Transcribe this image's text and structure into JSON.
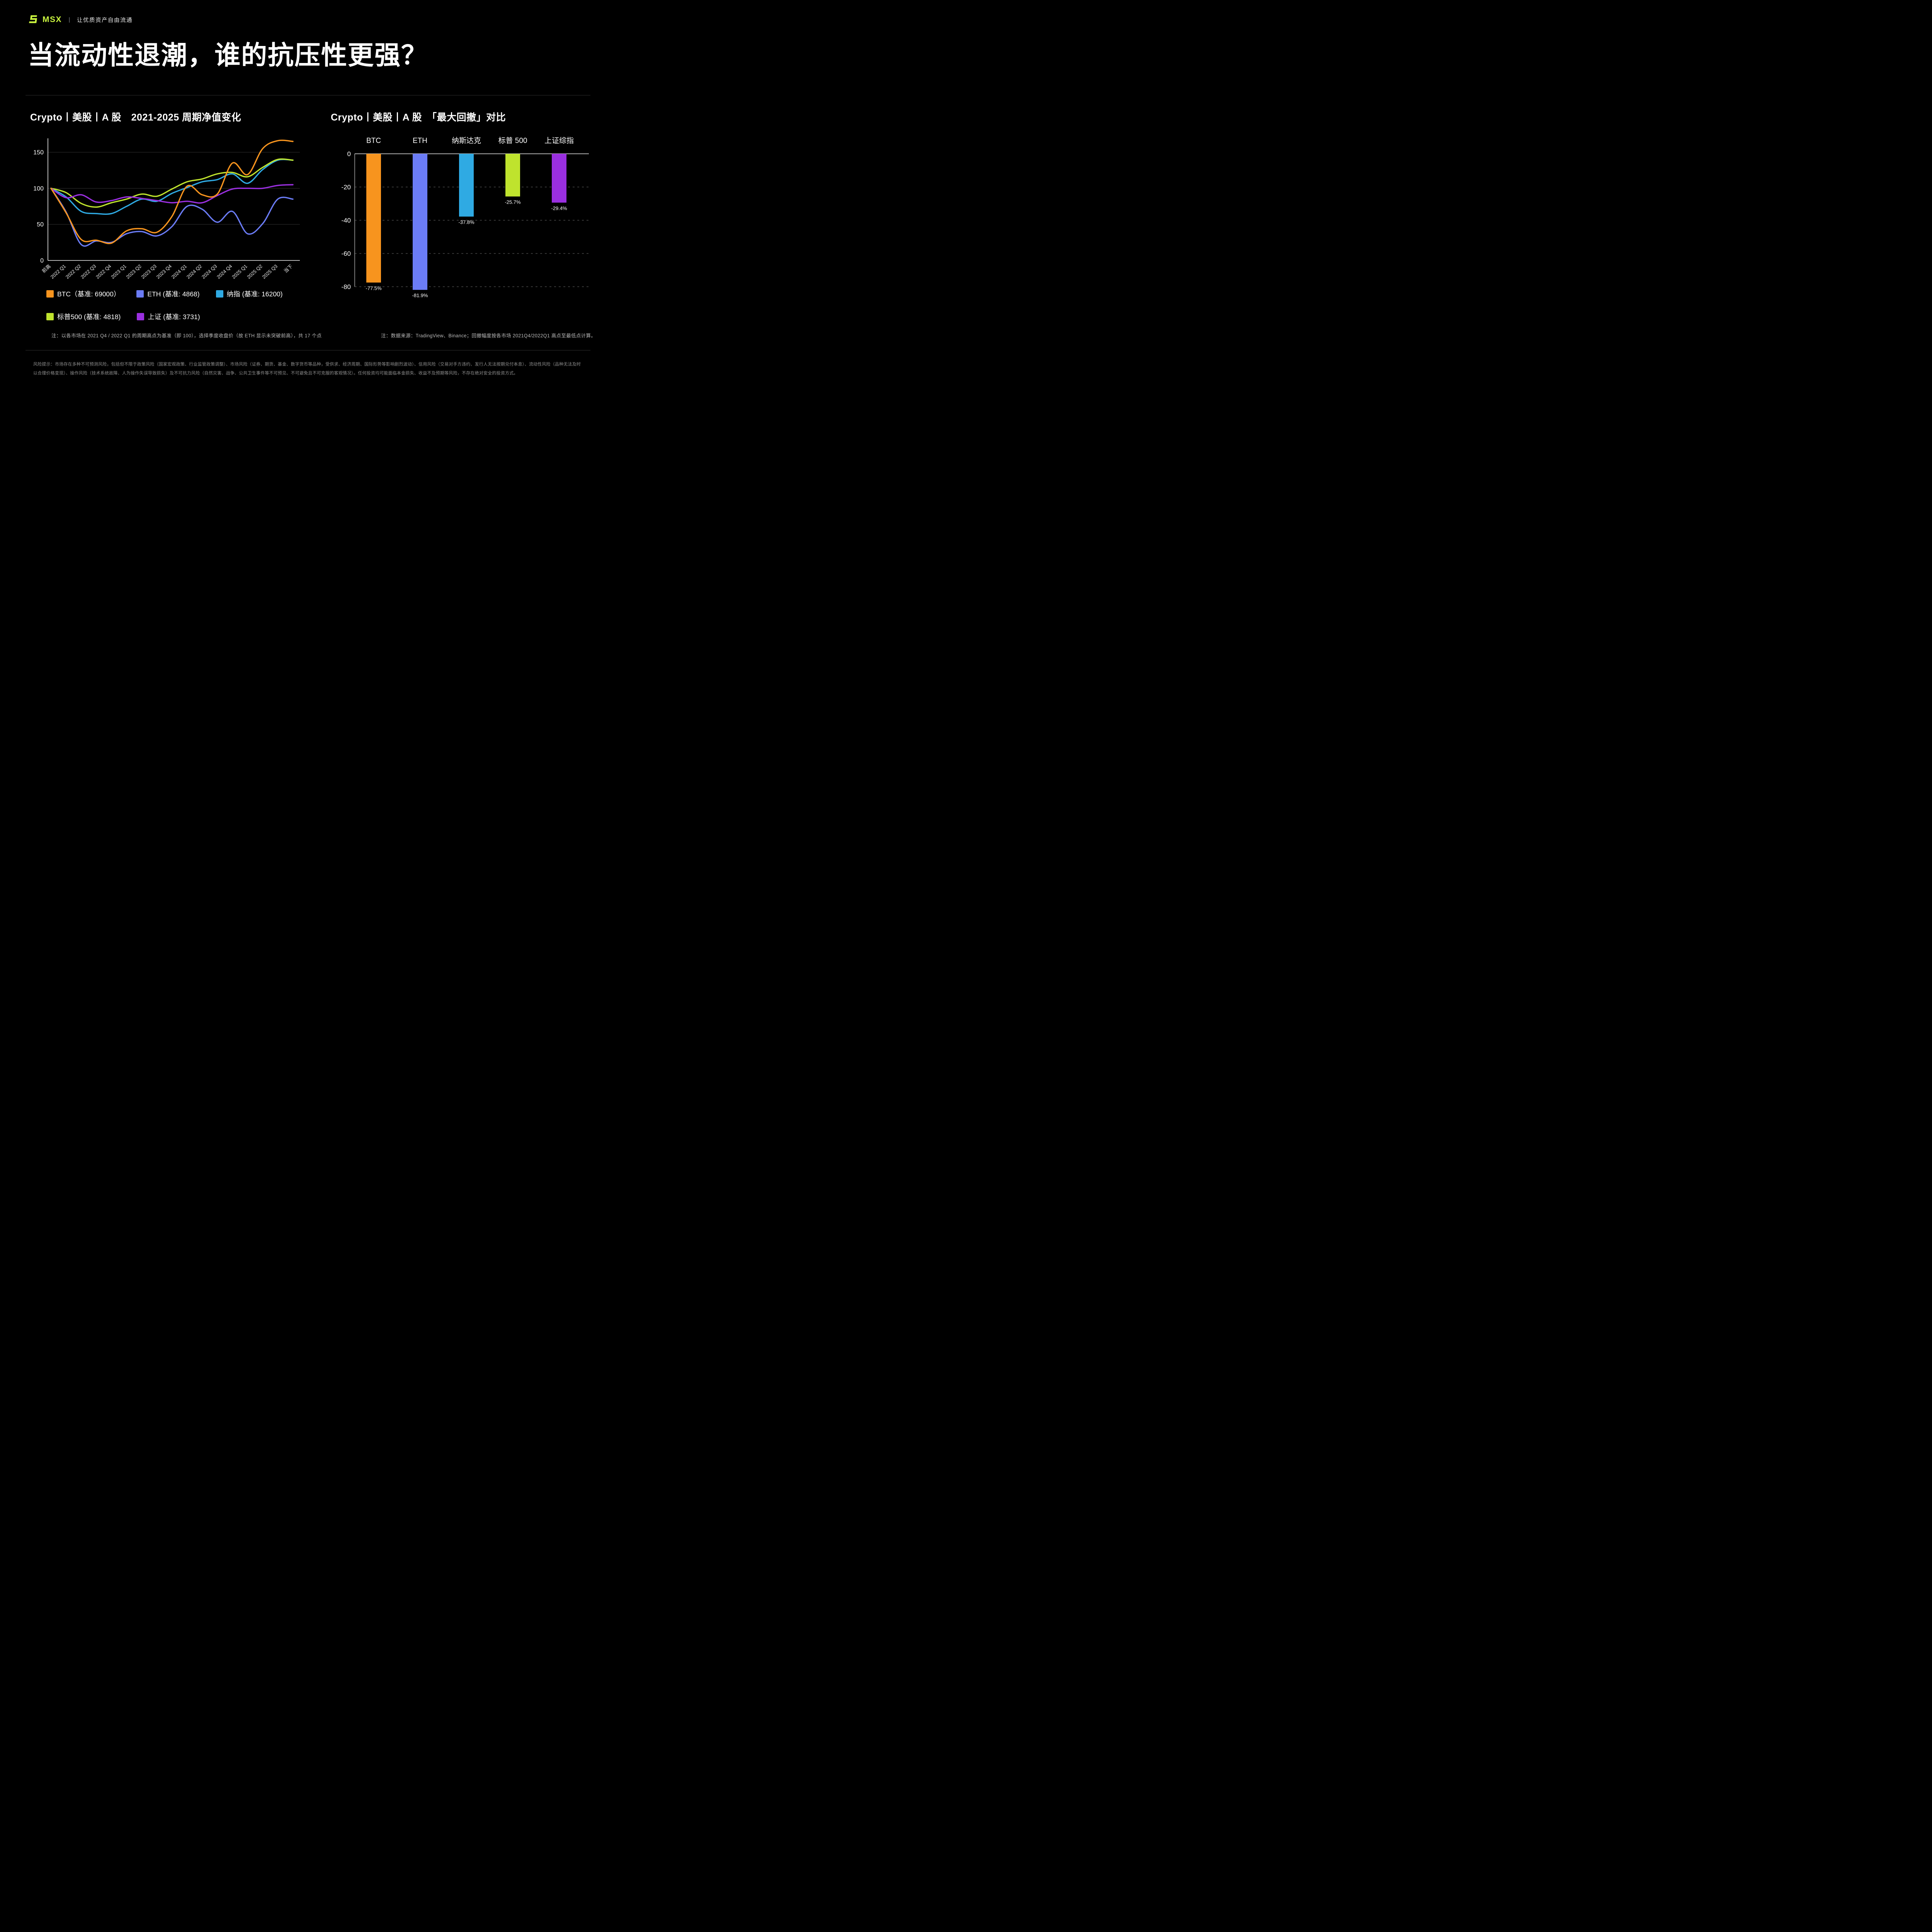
{
  "header": {
    "brand": "MSX",
    "separator": "丨",
    "tagline": "让优质资产自由流通"
  },
  "title": "当流动性退潮，谁的抗压性更强？",
  "accent_color": "#cbf63f",
  "chart_data": [
    {
      "type": "line",
      "title": "Crypto丨美股丨A 股　2021-2025 周期净值变化",
      "note": "注：以各市场在 2021 Q4 / 2022 Q1 的周期高点为基准（即 100），选择季度收盘价（故 ETH 显示未突破前高），共 17 个点",
      "x": [
        "前高",
        "2022 Q1",
        "2022 Q2",
        "2022 Q3",
        "2022 Q4",
        "2023 Q1",
        "2023 Q2",
        "2023 Q3",
        "2023 Q4",
        "2024 Q1",
        "2024 Q2",
        "2024 Q3",
        "2024 Q4",
        "2025 Q1",
        "2025 Q2",
        "2025 Q3",
        "当下"
      ],
      "yticks": [
        0,
        50,
        100,
        150
      ],
      "ylim": [
        0,
        172
      ],
      "grid": true,
      "legend_position": "bottom",
      "series": [
        {
          "name": "BTC（基准: 69000）",
          "color": "#f7941e",
          "values": [
            100,
            66,
            29,
            28,
            24,
            41,
            44,
            39,
            61,
            103,
            91,
            92,
            135,
            119,
            155,
            166,
            165
          ]
        },
        {
          "name": "ETH (基准: 4868)",
          "color": "#6b7cf6",
          "values": [
            100,
            67,
            22,
            27,
            25,
            37,
            40,
            34,
            47,
            75,
            71,
            53,
            68,
            37,
            51,
            85,
            85
          ]
        },
        {
          "name": "纳指 (基准: 16200)",
          "color": "#2faae3",
          "values": [
            100,
            88,
            68,
            65,
            65,
            75,
            85,
            82,
            93,
            101,
            109,
            112,
            120,
            107,
            126,
            139,
            139
          ]
        },
        {
          "name": "标普500 (基准: 4818)",
          "color": "#bfe32d",
          "values": [
            100,
            94,
            79,
            74,
            80,
            85,
            92,
            89,
            99,
            109,
            113,
            120,
            122,
            116,
            129,
            140,
            139
          ]
        },
        {
          "name": "上证 (基准: 3731)",
          "color": "#9a2fe0",
          "values": [
            100,
            87,
            91,
            81,
            83,
            88,
            86,
            83,
            80,
            82,
            80,
            90,
            99,
            100,
            100,
            104,
            105
          ]
        }
      ]
    },
    {
      "type": "bar",
      "title": "Crypto丨美股丨A 股　「最大回撤」对比",
      "note": "注：数据来源：TradingView、Binance；回撤幅度按各市场 2021Q4/2022Q1 高点至最低点计算。",
      "categories": [
        "BTC",
        "ETH",
        "纳斯达克",
        "标普 500",
        "上证综指"
      ],
      "values": [
        -77.5,
        -81.9,
        -37.8,
        -25.7,
        -29.4
      ],
      "value_labels": [
        "-77.5%",
        "-81.9%",
        "-37.8%",
        "-25.7%",
        "-29.4%"
      ],
      "colors": [
        "#f7941e",
        "#6b7cf6",
        "#2faae3",
        "#bfe32d",
        "#9a2fe0"
      ],
      "yticks": [
        0,
        -20,
        -40,
        -60,
        -80
      ],
      "ylim": [
        -88,
        0
      ],
      "grid": "dashed horizontal"
    }
  ],
  "footer": {
    "risk_text": "风险提示：市场存在多种不可预测风险，包括但不限于政策风险（国家宏观政策、行业监管政策调整）、市场风险（证券、期货、基金、数字货币等品种，受供求、经济周期、国际形势等影响剧烈波动）、信用风险（交易对手方违约、发行人无法按期兑付本息）、流动性风险（品种无法及时以合理价格变现）、操作风险（技术系统故障、人为操作失误导致损失）及不可抗力风险（自然灾害、战争、公共卫生事件等不可预见、不可避免且不可克服的客观情况）。任何投资均可能面临本金损失、收益不及预期等风险，不存在绝对安全的投资方式。"
  }
}
